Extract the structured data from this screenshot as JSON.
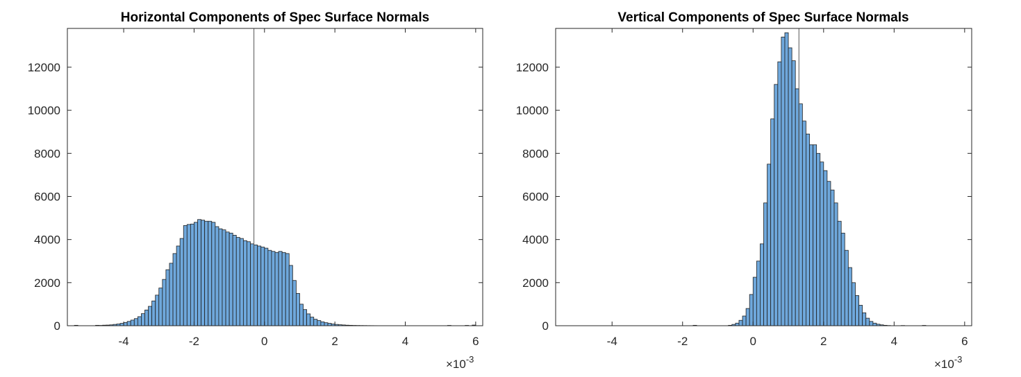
{
  "chart_data": [
    {
      "type": "bar",
      "title": "Horizontal Components of Spec Surface Normals",
      "xlabel": "",
      "ylabel": "",
      "xlim": [
        -0.0056,
        0.0062
      ],
      "ylim": [
        0,
        13800
      ],
      "x_ticks": [
        "-4",
        "-2",
        "0",
        "2",
        "4",
        "6"
      ],
      "y_ticks": [
        "0",
        "2000",
        "4000",
        "6000",
        "8000",
        "10000",
        "12000"
      ],
      "x_exponent": "×10",
      "x_exponent_power": "-3",
      "bar_color": "#6fa8dc",
      "bar_edge_color": "#1f1f1f",
      "bin_start": -0.0048,
      "bin_width": 0.0001,
      "values": [
        20,
        15,
        25,
        30,
        40,
        60,
        80,
        110,
        150,
        200,
        260,
        330,
        420,
        560,
        730,
        900,
        1150,
        1420,
        1750,
        2150,
        2600,
        2900,
        3350,
        3700,
        4050,
        4650,
        4700,
        4720,
        4800,
        4930,
        4900,
        4850,
        4850,
        4800,
        4600,
        4500,
        4450,
        4350,
        4300,
        4200,
        4100,
        4050,
        3950,
        3900,
        3800,
        3750,
        3700,
        3650,
        3600,
        3500,
        3450,
        3400,
        3450,
        3400,
        3350,
        2800,
        2100,
        1500,
        1000,
        750,
        550,
        400,
        300,
        240,
        180,
        140,
        110,
        80,
        60,
        45,
        35,
        25,
        20,
        15,
        12,
        10,
        8,
        6,
        5,
        4
      ],
      "outliers": [
        {
          "x": -0.0054,
          "y": 20
        },
        {
          "x": 0.0052,
          "y": 15
        },
        {
          "x": 0.0057,
          "y": 15
        },
        {
          "x": 0.0059,
          "y": 30
        }
      ],
      "vertical_line_x": -0.0003,
      "grid": false
    },
    {
      "type": "bar",
      "title": "Vertical Components of Spec Surface Normals",
      "xlabel": "",
      "ylabel": "",
      "xlim": [
        -0.0056,
        0.0062
      ],
      "ylim": [
        0,
        13800
      ],
      "x_ticks": [
        "-4",
        "-2",
        "0",
        "2",
        "4",
        "6"
      ],
      "y_ticks": [
        "0",
        "2000",
        "4000",
        "6000",
        "8000",
        "10000",
        "12000"
      ],
      "x_exponent": "×10",
      "x_exponent_power": "-3",
      "bar_color": "#6fa8dc",
      "bar_edge_color": "#1f1f1f",
      "bin_start": -0.0007,
      "bin_width": 0.0001,
      "values": [
        20,
        60,
        120,
        250,
        450,
        800,
        1450,
        2250,
        3000,
        3800,
        5700,
        7500,
        9600,
        11200,
        12250,
        13400,
        13600,
        12900,
        12300,
        11000,
        10300,
        9500,
        8900,
        8400,
        8400,
        8000,
        7600,
        7200,
        6700,
        6300,
        5700,
        4850,
        4300,
        3500,
        2700,
        2000,
        1400,
        950,
        600,
        350,
        200,
        120,
        70,
        40,
        20,
        10
      ],
      "outliers": [
        {
          "x": -0.0017,
          "y": 20
        },
        {
          "x": 0.0042,
          "y": 10
        },
        {
          "x": 0.0048,
          "y": 15
        }
      ],
      "vertical_line_x": 0.0013,
      "grid": false
    }
  ]
}
